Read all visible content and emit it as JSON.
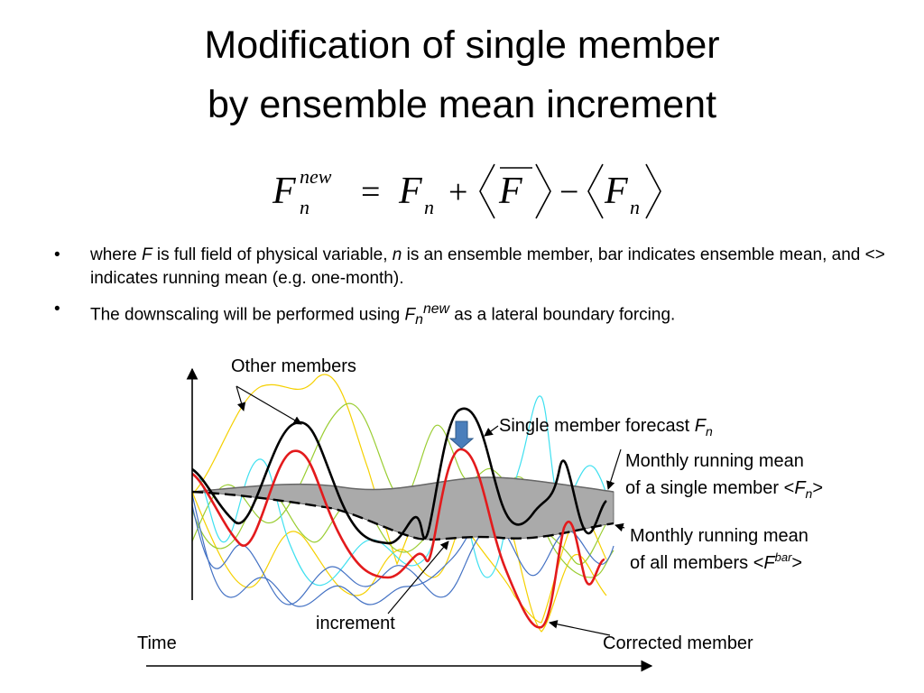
{
  "title": {
    "line1": "Modification of single member",
    "line2": "by ensemble mean increment"
  },
  "formula": {
    "lhs_F": "F",
    "lhs_sup": "new",
    "lhs_sub": "n",
    "eq": "=",
    "t1_F": "F",
    "t1_sub": "n",
    "plus": "+",
    "t2_F": "F",
    "minus": "−",
    "t3_F": "F",
    "t3_sub": "n"
  },
  "bullets": [
    {
      "marker": "•",
      "p1": "where ",
      "v1": "F",
      "p2": " is full field of physical variable, ",
      "v2": "n",
      "p3": " is an ensemble member, bar indicates ensemble mean, and <> indicates running mean (e.g. one-month)."
    },
    {
      "marker": "•",
      "p1": "The downscaling will be performed using ",
      "v1": "F",
      "sub": "n",
      "sup": "new",
      "p2": " as a lateral boundary forcing."
    }
  ],
  "diagram": {
    "labels": {
      "other_members": "Other members",
      "single_member_prefix": "Single member forecast ",
      "single_member_var": "F",
      "single_member_sub": "n",
      "monthly_single_l1": "Monthly running mean",
      "monthly_single_l2_pre": "of a single member <",
      "monthly_single_l2_var": "F",
      "monthly_single_l2_sub": "n",
      "monthly_single_l2_post": ">",
      "monthly_all_l1": "Monthly running mean",
      "monthly_all_l2_pre": "of all members <",
      "monthly_all_l2_var": "F",
      "monthly_all_l2_sup": "bar",
      "monthly_all_l2_post": ">",
      "increment": "increment",
      "time": "Time",
      "corrected_member": "Corrected member"
    },
    "colors": {
      "single_member": "#000000",
      "corrected_member": "#e31a1c",
      "increment_band": "#aaaaaa",
      "increment_arrow": "#4a7ebb",
      "other_yellow": "#f5d000",
      "other_green": "#9acd32",
      "other_cyan": "#3fe0f0",
      "other_blue": "#4472c4"
    }
  }
}
